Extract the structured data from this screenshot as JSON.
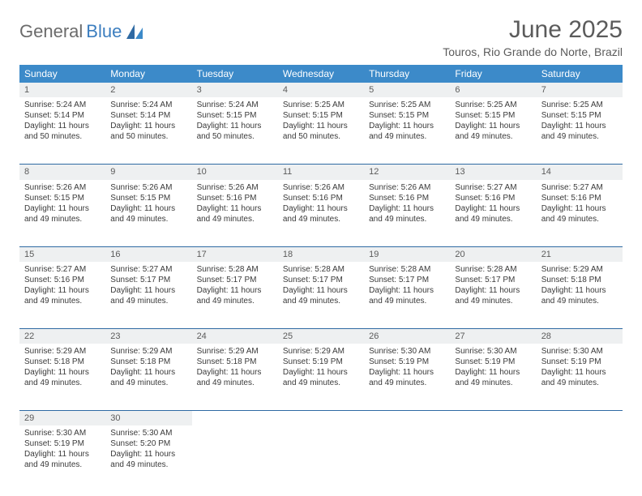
{
  "brand": {
    "word1": "General",
    "word2": "Blue"
  },
  "header": {
    "month_title": "June 2025",
    "location": "Touros, Rio Grande do Norte, Brazil"
  },
  "colors": {
    "header_bg": "#3c8ac9",
    "daynum_bg": "#eef0f1",
    "row_divider": "#2f6aa3",
    "text": "#3a3a3a",
    "brand_gray": "#6b6b6b",
    "brand_blue": "#3c7ebf"
  },
  "weekdays": [
    "Sunday",
    "Monday",
    "Tuesday",
    "Wednesday",
    "Thursday",
    "Friday",
    "Saturday"
  ],
  "weeks": [
    [
      {
        "n": "1",
        "sr": "Sunrise: 5:24 AM",
        "ss": "Sunset: 5:14 PM",
        "d1": "Daylight: 11 hours",
        "d2": "and 50 minutes."
      },
      {
        "n": "2",
        "sr": "Sunrise: 5:24 AM",
        "ss": "Sunset: 5:14 PM",
        "d1": "Daylight: 11 hours",
        "d2": "and 50 minutes."
      },
      {
        "n": "3",
        "sr": "Sunrise: 5:24 AM",
        "ss": "Sunset: 5:15 PM",
        "d1": "Daylight: 11 hours",
        "d2": "and 50 minutes."
      },
      {
        "n": "4",
        "sr": "Sunrise: 5:25 AM",
        "ss": "Sunset: 5:15 PM",
        "d1": "Daylight: 11 hours",
        "d2": "and 50 minutes."
      },
      {
        "n": "5",
        "sr": "Sunrise: 5:25 AM",
        "ss": "Sunset: 5:15 PM",
        "d1": "Daylight: 11 hours",
        "d2": "and 49 minutes."
      },
      {
        "n": "6",
        "sr": "Sunrise: 5:25 AM",
        "ss": "Sunset: 5:15 PM",
        "d1": "Daylight: 11 hours",
        "d2": "and 49 minutes."
      },
      {
        "n": "7",
        "sr": "Sunrise: 5:25 AM",
        "ss": "Sunset: 5:15 PM",
        "d1": "Daylight: 11 hours",
        "d2": "and 49 minutes."
      }
    ],
    [
      {
        "n": "8",
        "sr": "Sunrise: 5:26 AM",
        "ss": "Sunset: 5:15 PM",
        "d1": "Daylight: 11 hours",
        "d2": "and 49 minutes."
      },
      {
        "n": "9",
        "sr": "Sunrise: 5:26 AM",
        "ss": "Sunset: 5:15 PM",
        "d1": "Daylight: 11 hours",
        "d2": "and 49 minutes."
      },
      {
        "n": "10",
        "sr": "Sunrise: 5:26 AM",
        "ss": "Sunset: 5:16 PM",
        "d1": "Daylight: 11 hours",
        "d2": "and 49 minutes."
      },
      {
        "n": "11",
        "sr": "Sunrise: 5:26 AM",
        "ss": "Sunset: 5:16 PM",
        "d1": "Daylight: 11 hours",
        "d2": "and 49 minutes."
      },
      {
        "n": "12",
        "sr": "Sunrise: 5:26 AM",
        "ss": "Sunset: 5:16 PM",
        "d1": "Daylight: 11 hours",
        "d2": "and 49 minutes."
      },
      {
        "n": "13",
        "sr": "Sunrise: 5:27 AM",
        "ss": "Sunset: 5:16 PM",
        "d1": "Daylight: 11 hours",
        "d2": "and 49 minutes."
      },
      {
        "n": "14",
        "sr": "Sunrise: 5:27 AM",
        "ss": "Sunset: 5:16 PM",
        "d1": "Daylight: 11 hours",
        "d2": "and 49 minutes."
      }
    ],
    [
      {
        "n": "15",
        "sr": "Sunrise: 5:27 AM",
        "ss": "Sunset: 5:16 PM",
        "d1": "Daylight: 11 hours",
        "d2": "and 49 minutes."
      },
      {
        "n": "16",
        "sr": "Sunrise: 5:27 AM",
        "ss": "Sunset: 5:17 PM",
        "d1": "Daylight: 11 hours",
        "d2": "and 49 minutes."
      },
      {
        "n": "17",
        "sr": "Sunrise: 5:28 AM",
        "ss": "Sunset: 5:17 PM",
        "d1": "Daylight: 11 hours",
        "d2": "and 49 minutes."
      },
      {
        "n": "18",
        "sr": "Sunrise: 5:28 AM",
        "ss": "Sunset: 5:17 PM",
        "d1": "Daylight: 11 hours",
        "d2": "and 49 minutes."
      },
      {
        "n": "19",
        "sr": "Sunrise: 5:28 AM",
        "ss": "Sunset: 5:17 PM",
        "d1": "Daylight: 11 hours",
        "d2": "and 49 minutes."
      },
      {
        "n": "20",
        "sr": "Sunrise: 5:28 AM",
        "ss": "Sunset: 5:17 PM",
        "d1": "Daylight: 11 hours",
        "d2": "and 49 minutes."
      },
      {
        "n": "21",
        "sr": "Sunrise: 5:29 AM",
        "ss": "Sunset: 5:18 PM",
        "d1": "Daylight: 11 hours",
        "d2": "and 49 minutes."
      }
    ],
    [
      {
        "n": "22",
        "sr": "Sunrise: 5:29 AM",
        "ss": "Sunset: 5:18 PM",
        "d1": "Daylight: 11 hours",
        "d2": "and 49 minutes."
      },
      {
        "n": "23",
        "sr": "Sunrise: 5:29 AM",
        "ss": "Sunset: 5:18 PM",
        "d1": "Daylight: 11 hours",
        "d2": "and 49 minutes."
      },
      {
        "n": "24",
        "sr": "Sunrise: 5:29 AM",
        "ss": "Sunset: 5:18 PM",
        "d1": "Daylight: 11 hours",
        "d2": "and 49 minutes."
      },
      {
        "n": "25",
        "sr": "Sunrise: 5:29 AM",
        "ss": "Sunset: 5:19 PM",
        "d1": "Daylight: 11 hours",
        "d2": "and 49 minutes."
      },
      {
        "n": "26",
        "sr": "Sunrise: 5:30 AM",
        "ss": "Sunset: 5:19 PM",
        "d1": "Daylight: 11 hours",
        "d2": "and 49 minutes."
      },
      {
        "n": "27",
        "sr": "Sunrise: 5:30 AM",
        "ss": "Sunset: 5:19 PM",
        "d1": "Daylight: 11 hours",
        "d2": "and 49 minutes."
      },
      {
        "n": "28",
        "sr": "Sunrise: 5:30 AM",
        "ss": "Sunset: 5:19 PM",
        "d1": "Daylight: 11 hours",
        "d2": "and 49 minutes."
      }
    ],
    [
      {
        "n": "29",
        "sr": "Sunrise: 5:30 AM",
        "ss": "Sunset: 5:19 PM",
        "d1": "Daylight: 11 hours",
        "d2": "and 49 minutes."
      },
      {
        "n": "30",
        "sr": "Sunrise: 5:30 AM",
        "ss": "Sunset: 5:20 PM",
        "d1": "Daylight: 11 hours",
        "d2": "and 49 minutes."
      },
      null,
      null,
      null,
      null,
      null
    ]
  ]
}
